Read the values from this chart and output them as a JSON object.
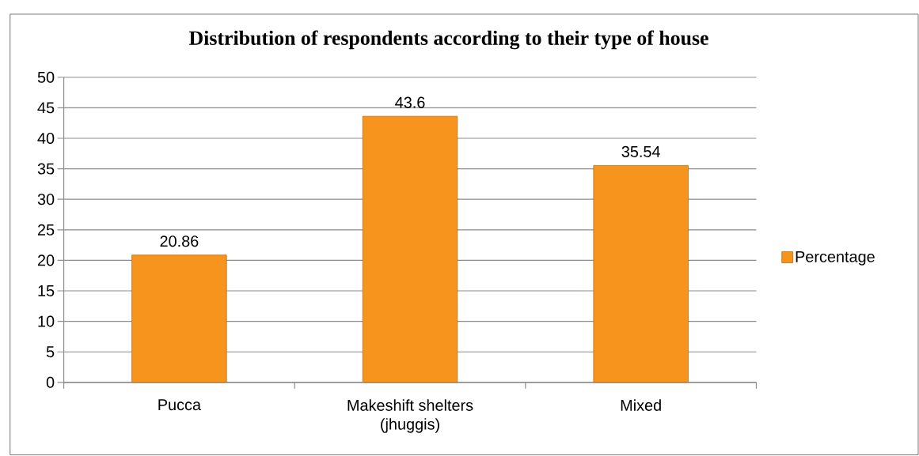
{
  "chart_data": {
    "type": "bar",
    "title": "Distribution of respondents according to their type of house",
    "categories": [
      "Pucca",
      "Makeshift shelters (jhuggis)",
      "Mixed"
    ],
    "series": [
      {
        "name": "Percentage",
        "color": "#f7941d",
        "values": [
          20.86,
          43.6,
          35.54
        ]
      }
    ],
    "ylim": [
      0,
      50
    ],
    "yticks": [
      0,
      5,
      10,
      15,
      20,
      25,
      30,
      35,
      40,
      45,
      50
    ],
    "grid": "y",
    "legend": "right",
    "data_labels": true
  }
}
